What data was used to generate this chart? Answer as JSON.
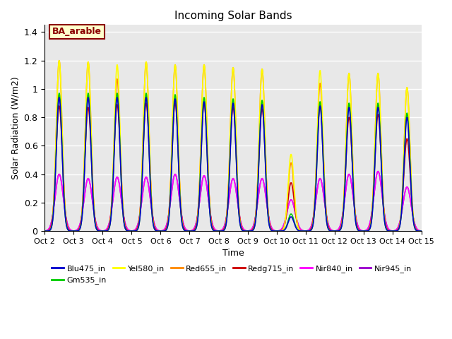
{
  "title": "Incoming Solar Bands",
  "xlabel": "Time",
  "ylabel": "Solar Radiation (W/m2)",
  "background_color": "#e8e8e8",
  "ylim": [
    0,
    1.45
  ],
  "yticks": [
    0.0,
    0.2,
    0.4,
    0.6,
    0.8,
    1.0,
    1.2,
    1.4
  ],
  "annotation_text": "BA_arable",
  "annotation_bg": "#ffffcc",
  "annotation_border": "#8b0000",
  "series": [
    {
      "name": "Blu475_in",
      "color": "#0000cc",
      "lw": 1.2,
      "key": "blu",
      "sigma": 0.1
    },
    {
      "name": "Gm535_in",
      "color": "#00cc00",
      "lw": 1.2,
      "key": "gm",
      "sigma": 0.1
    },
    {
      "name": "Yel580_in",
      "color": "#ffff00",
      "lw": 1.2,
      "key": "yel",
      "sigma": 0.1
    },
    {
      "name": "Red655_in",
      "color": "#ff8800",
      "lw": 1.2,
      "key": "red",
      "sigma": 0.1
    },
    {
      "name": "Redg715_in",
      "color": "#cc0000",
      "lw": 1.2,
      "key": "redg",
      "sigma": 0.11
    },
    {
      "name": "Nir840_in",
      "color": "#ff00ff",
      "lw": 1.2,
      "key": "nir840",
      "sigma": 0.14
    },
    {
      "name": "Nir945_in",
      "color": "#9900cc",
      "lw": 1.2,
      "key": "nir945",
      "sigma": 0.14
    }
  ],
  "day_peaks": [
    {
      "blu": 0.94,
      "gm": 0.97,
      "yel": 1.2,
      "red": 1.2,
      "redg": 0.88,
      "nir840": 0.4,
      "nir945": 0.4
    },
    {
      "blu": 0.94,
      "gm": 0.97,
      "yel": 1.19,
      "red": 1.19,
      "redg": 0.87,
      "nir840": 0.37,
      "nir945": 0.37
    },
    {
      "blu": 0.94,
      "gm": 0.97,
      "yel": 1.17,
      "red": 1.07,
      "redg": 0.89,
      "nir840": 0.38,
      "nir945": 0.38
    },
    {
      "blu": 0.94,
      "gm": 0.97,
      "yel": 1.19,
      "red": 1.19,
      "redg": 0.9,
      "nir840": 0.38,
      "nir945": 0.38
    },
    {
      "blu": 0.93,
      "gm": 0.96,
      "yel": 1.17,
      "red": 1.17,
      "redg": 0.9,
      "nir840": 0.4,
      "nir945": 0.4
    },
    {
      "blu": 0.91,
      "gm": 0.94,
      "yel": 1.17,
      "red": 1.17,
      "redg": 0.9,
      "nir840": 0.39,
      "nir945": 0.39
    },
    {
      "blu": 0.9,
      "gm": 0.93,
      "yel": 1.15,
      "red": 1.15,
      "redg": 0.87,
      "nir840": 0.37,
      "nir945": 0.37
    },
    {
      "blu": 0.89,
      "gm": 0.92,
      "yel": 1.14,
      "red": 1.14,
      "redg": 0.86,
      "nir840": 0.37,
      "nir945": 0.37
    },
    {
      "blu": 0.1,
      "gm": 0.12,
      "yel": 0.54,
      "red": 0.48,
      "redg": 0.34,
      "nir840": 0.22,
      "nir945": 0.22
    },
    {
      "blu": 0.88,
      "gm": 0.91,
      "yel": 1.13,
      "red": 1.04,
      "redg": 0.88,
      "nir840": 0.37,
      "nir945": 0.37
    },
    {
      "blu": 0.87,
      "gm": 0.9,
      "yel": 1.11,
      "red": 1.11,
      "redg": 0.8,
      "nir840": 0.4,
      "nir945": 0.4
    },
    {
      "blu": 0.87,
      "gm": 0.9,
      "yel": 1.11,
      "red": 1.11,
      "redg": 0.82,
      "nir840": 0.42,
      "nir945": 0.42
    },
    {
      "blu": 0.8,
      "gm": 0.83,
      "yel": 1.01,
      "red": 1.01,
      "redg": 0.65,
      "nir840": 0.31,
      "nir945": 0.31
    }
  ],
  "plot_order": [
    6,
    5,
    3,
    4,
    2,
    1,
    0
  ],
  "figsize": [
    6.4,
    4.8
  ],
  "dpi": 100
}
